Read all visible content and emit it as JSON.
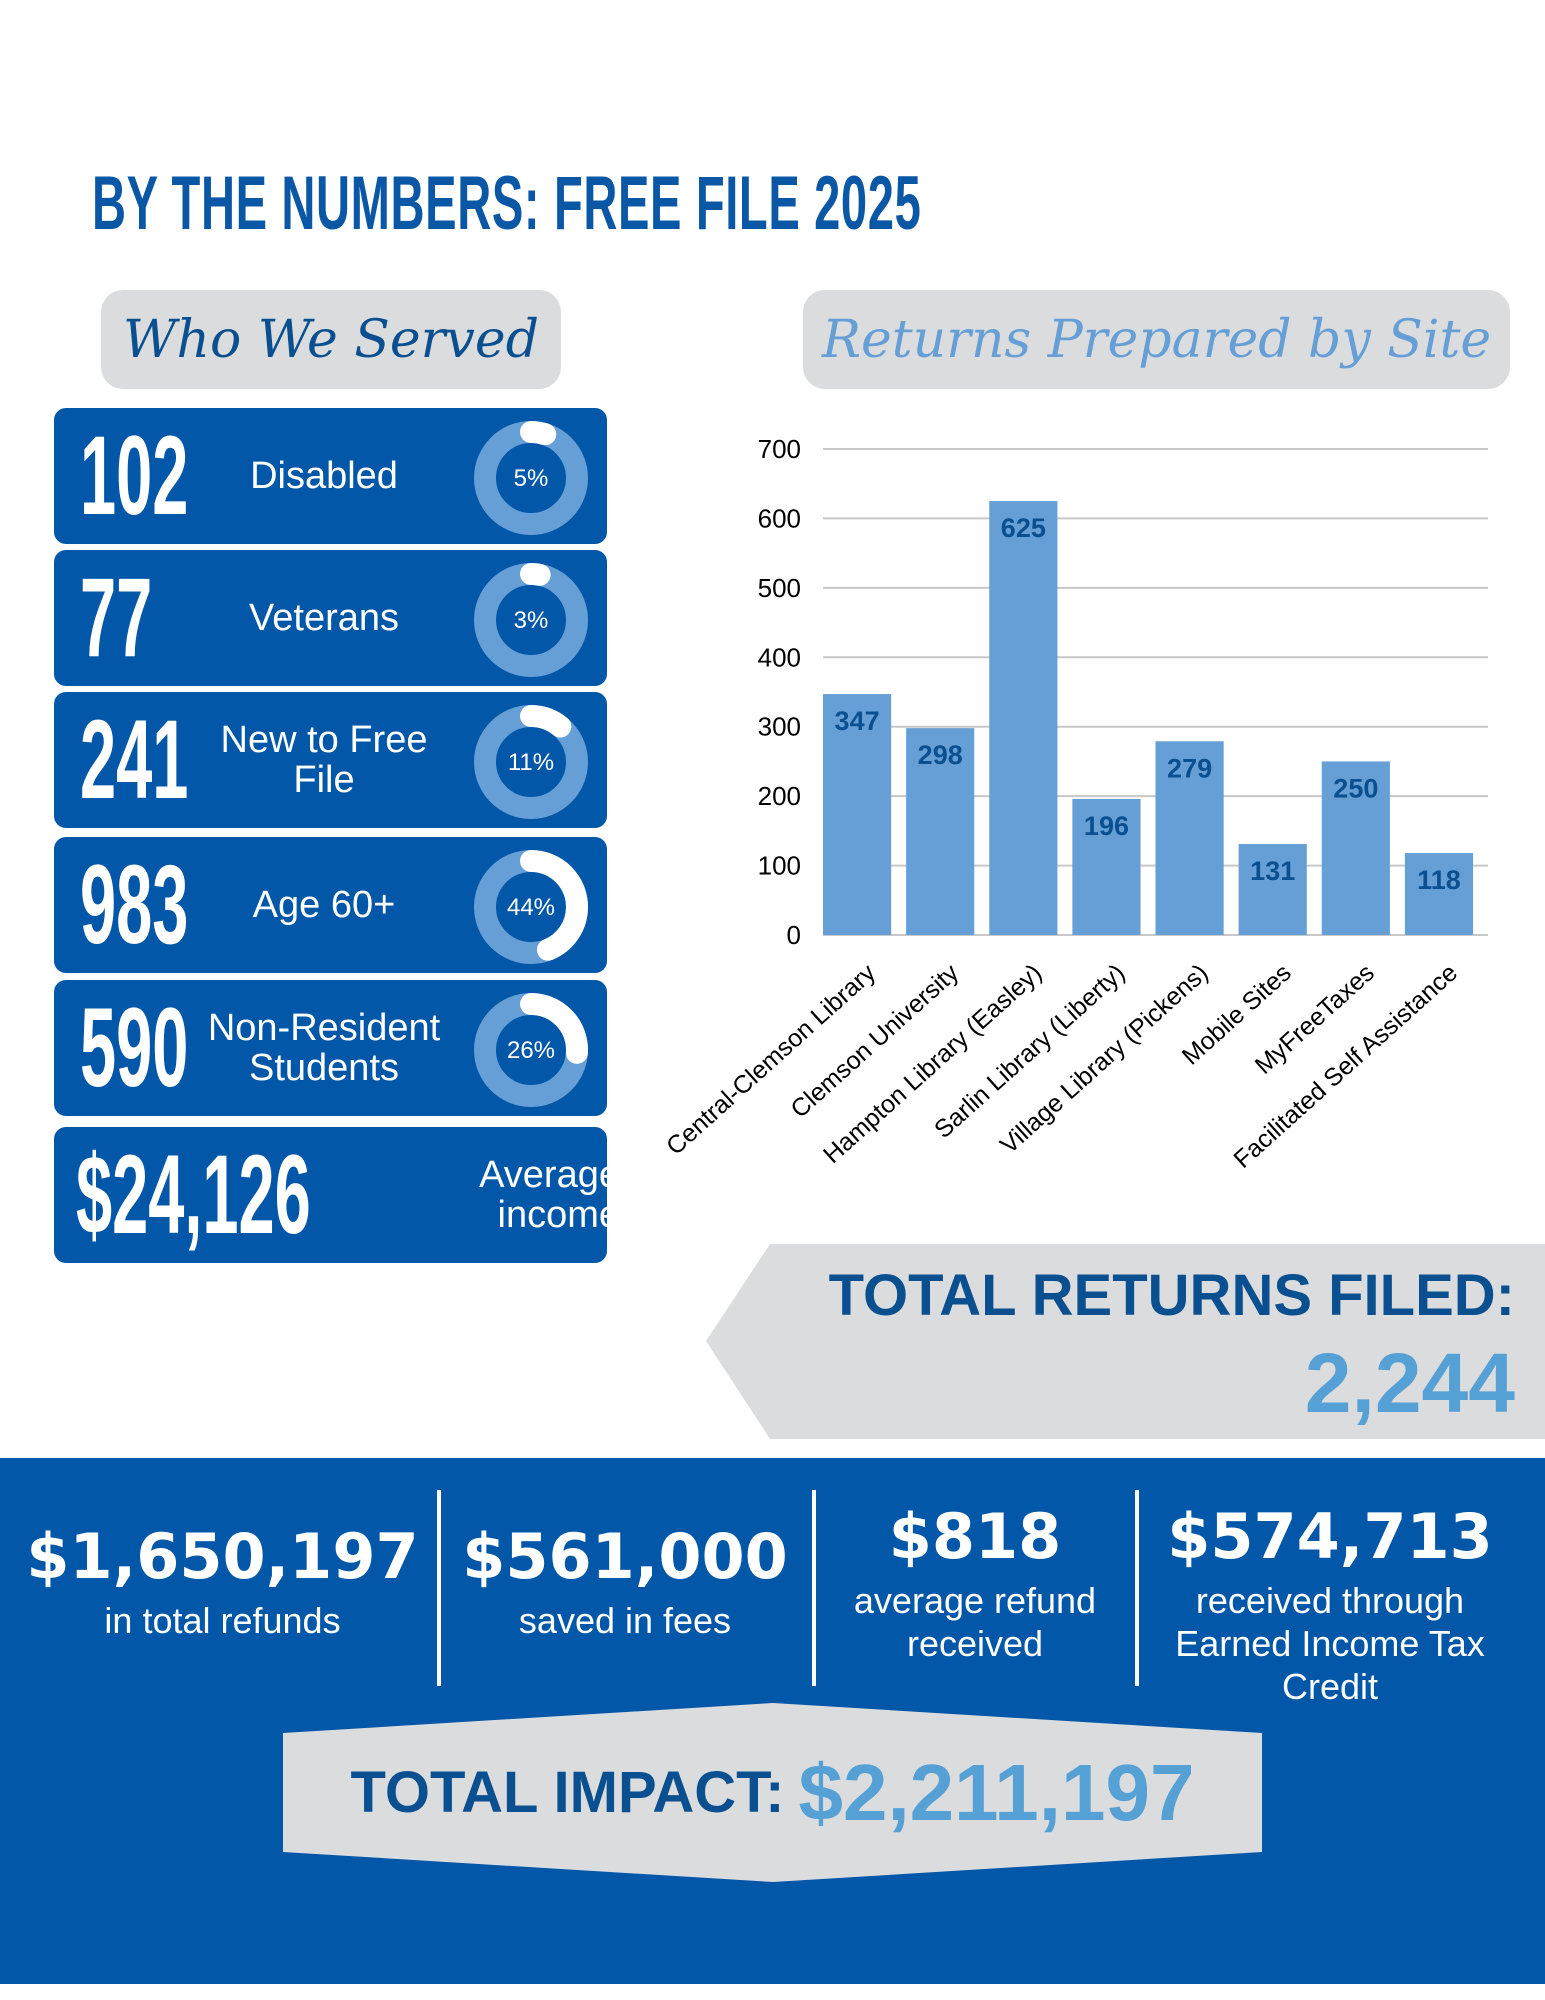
{
  "title": "BY THE NUMBERS: FREE FILE 2025",
  "who_we_served": {
    "heading": "Who We Served",
    "cards": [
      {
        "number": "102",
        "label": "Disabled",
        "percent_label": "5%",
        "percent": 5
      },
      {
        "number": "77",
        "label": "Veterans",
        "percent_label": "3%",
        "percent": 3
      },
      {
        "number": "241",
        "label": "New to Free File",
        "percent_label": "11%",
        "percent": 11
      },
      {
        "number": "983",
        "label": "Age 60+",
        "percent_label": "44%",
        "percent": 44
      },
      {
        "number": "590",
        "label": "Non-Resident Students",
        "percent_label": "26%",
        "percent": 26
      }
    ],
    "income": {
      "number": "$24,126",
      "label": "Average income"
    }
  },
  "colors": {
    "blue": "#0257a8",
    "light_blue": "#669fd6",
    "gray": "#dbdcde",
    "dark_text": "#0a4f8f",
    "accent_text": "#55a0d4"
  },
  "chart_data": {
    "type": "bar",
    "title": "Returns Prepared by Site",
    "categories": [
      "Central-Clemson Library",
      "Clemson University",
      "Hampton Library (Easley)",
      "Sarlin Library (Liberty)",
      "Village Library (Pickens)",
      "Mobile Sites",
      "MyFreeTaxes",
      "Facilitated Self Assistance"
    ],
    "values": [
      347,
      298,
      625,
      196,
      279,
      131,
      250,
      118
    ],
    "ylim": [
      0,
      700
    ],
    "yticks": [
      0,
      100,
      200,
      300,
      400,
      500,
      600,
      700
    ],
    "grid": true,
    "data_labels": true
  },
  "total_returns": {
    "label": "TOTAL RETURNS FILED:",
    "value": "2,244"
  },
  "stats": [
    {
      "value": "$1,650,197",
      "label": "in total refunds"
    },
    {
      "value": "$561,000",
      "label": "saved in fees"
    },
    {
      "value": "$818",
      "label": "average refund received"
    },
    {
      "value": "$574,713",
      "label": "received through Earned Income Tax Credit"
    }
  ],
  "total_impact": {
    "label": "TOTAL IMPACT:",
    "value": "$2,211,197"
  }
}
